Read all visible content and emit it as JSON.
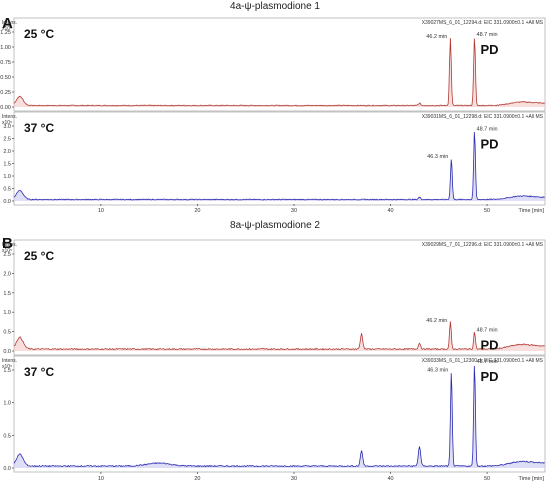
{
  "panels": [
    {
      "letter": "A",
      "title": "4a-ψ-plasmodione 1",
      "traces": [
        {
          "temp": "25 °C",
          "header": "X39027MS_6_01_12294.d: EIC 331.0900±0.1 +All MS",
          "yunit": "Intens.",
          "yexp": "x10⁵",
          "ymax": 1.25,
          "yticks": [
            "0.00",
            "0.25",
            "0.50",
            "0.75",
            "1.00",
            "1.25"
          ],
          "color": "#b03a32",
          "fill": "#f3c9c6",
          "peaks": [
            {
              "x": 46.2,
              "y": 1.12,
              "label": "46.2 min"
            },
            {
              "x": 48.7,
              "y": 1.15,
              "label": "48.7 min"
            }
          ]
        },
        {
          "temp": "37 °C",
          "header": "X39031MS_6_01_12298.d: EIC 331.0900±0.1 +All MS",
          "yunit": "Intens.",
          "yexp": "x10⁵",
          "ymax": 3.0,
          "yticks": [
            "0.0",
            "0.5",
            "1.0",
            "1.5",
            "2.0",
            "2.5",
            "3.0"
          ],
          "color": "#2a2ab0",
          "fill": "#c8c8f0",
          "peaks": [
            {
              "x": 46.3,
              "y": 1.65,
              "label": "46.3 min"
            },
            {
              "x": 48.7,
              "y": 2.75,
              "label": "48.7 min"
            }
          ]
        }
      ],
      "xticks": [
        "10",
        "20",
        "30",
        "40",
        "50"
      ],
      "xlabel": "Time [min]"
    },
    {
      "letter": "B",
      "title": "8a-ψ-plasmodione 2",
      "traces": [
        {
          "temp": "25 °C",
          "header": "X39029MS_7_01_12296.d: EIC 331.0900±0.1 +All MS",
          "yunit": "Intens.",
          "yexp": "x10⁵",
          "ymax": 2.5,
          "yticks": [
            "0.0",
            "0.5",
            "1.0",
            "1.5",
            "2.0",
            "2.5"
          ],
          "color": "#b03a32",
          "fill": "#f3c9c6",
          "peaks": [
            {
              "x": 46.2,
              "y": 0.7,
              "label": "46.2 min"
            },
            {
              "x": 48.7,
              "y": 0.45,
              "label": "48.7 min"
            }
          ]
        },
        {
          "temp": "37 °C",
          "header": "X39033MS_6_01_12300.d: EIC 331.0900±0.1 +All MS",
          "yunit": "Intens.",
          "yexp": "x10⁵",
          "ymax": 1.5,
          "yticks": [
            "0.0",
            "0.5",
            "1.0",
            "1.5"
          ],
          "color": "#2a2ab0",
          "fill": "#c8c8f0",
          "peaks": [
            {
              "x": 46.3,
              "y": 1.45,
              "label": "46.3 min"
            },
            {
              "x": 48.7,
              "y": 1.58,
              "label": "48.7 min"
            }
          ]
        }
      ],
      "xticks": [
        "10",
        "20",
        "30",
        "40",
        "50"
      ],
      "xlabel": "Time [min]"
    }
  ],
  "pd_label": "PD",
  "chart_data": [
    {
      "type": "line",
      "title": "4a-ψ-plasmodione 1",
      "series": [
        {
          "name": "25 °C",
          "peaks_x": [
            46.2,
            48.7
          ],
          "peaks_y": [
            1.12,
            1.15
          ]
        },
        {
          "name": "37 °C",
          "peaks_x": [
            46.3,
            48.7
          ],
          "peaks_y": [
            1.65,
            2.75
          ]
        }
      ],
      "xlabel": "Time [min]",
      "ylabel": "Intens. x10⁵",
      "xlim": [
        1,
        56
      ]
    },
    {
      "type": "line",
      "title": "8a-ψ-plasmodione 2",
      "series": [
        {
          "name": "25 °C",
          "peaks_x": [
            46.2,
            48.7
          ],
          "peaks_y": [
            0.7,
            0.45
          ]
        },
        {
          "name": "37 °C",
          "peaks_x": [
            46.3,
            48.7
          ],
          "peaks_y": [
            1.45,
            1.58
          ]
        }
      ],
      "xlabel": "Time [min]",
      "ylabel": "Intens. x10⁵",
      "xlim": [
        1,
        56
      ]
    }
  ]
}
